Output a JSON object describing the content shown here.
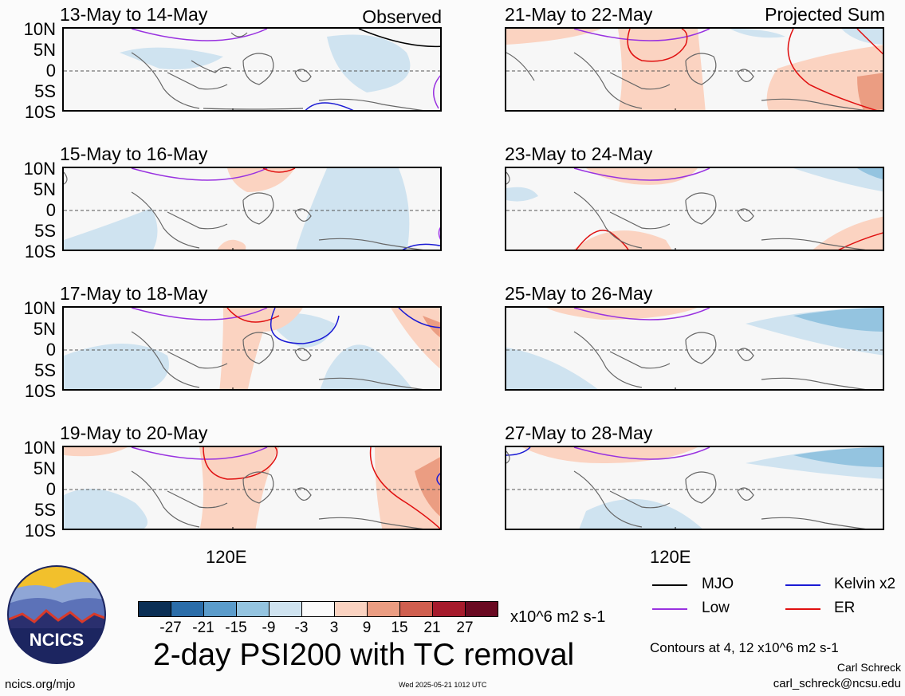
{
  "observed_label": "Observed",
  "projected_label": "Projected Sum",
  "panels_left": [
    {
      "title": "13-May to 14-May"
    },
    {
      "title": "15-May to 16-May"
    },
    {
      "title": "17-May to 18-May"
    },
    {
      "title": "19-May to 20-May"
    }
  ],
  "panels_right": [
    {
      "title": "21-May to 22-May"
    },
    {
      "title": "23-May to 24-May"
    },
    {
      "title": "25-May to 26-May"
    },
    {
      "title": "27-May to 28-May"
    }
  ],
  "lat_labels": [
    "10N",
    "5N",
    "0",
    "5S",
    "10S"
  ],
  "lon_label": "120E",
  "colorbar": {
    "ticks": [
      "-27",
      "-21",
      "-15",
      "-9",
      "-3",
      "3",
      "9",
      "15",
      "21",
      "27"
    ],
    "colors": [
      "#0b2f55",
      "#2b6da9",
      "#5b9ccb",
      "#94c4e0",
      "#cfe3f0",
      "#fbfbfb",
      "#fbd3c1",
      "#eb9d82",
      "#d05f4f",
      "#a61b2c",
      "#6a0a22"
    ],
    "units": "x10^6 m2 s-1"
  },
  "main_title": "2-day PSI200 with TC removal",
  "legend": [
    {
      "label": "MJO",
      "color": "#000000"
    },
    {
      "label": "Kelvin x2",
      "color": "#1a1ad4"
    },
    {
      "label": "Low",
      "color": "#9932e0"
    },
    {
      "label": "ER",
      "color": "#e01010"
    }
  ],
  "contour_note": "Contours at 4, 12 x10^6 m2 s-1",
  "author": "Carl Schreck",
  "email": "carl_schreck@ncsu.edu",
  "site": "ncics.org/mjo",
  "timestamp": "Wed 2025-05-21 1012 UTC",
  "logo_text": "NCICS"
}
